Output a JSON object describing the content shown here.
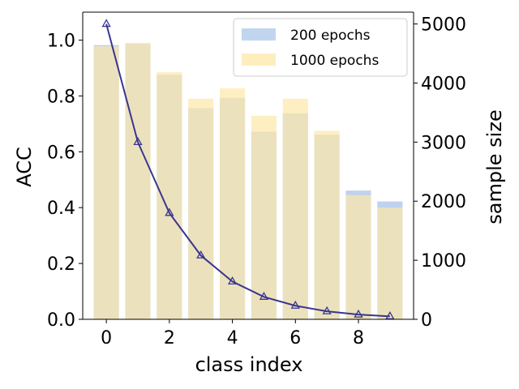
{
  "chart_data": {
    "type": "bar",
    "xlabel": "class index",
    "ylabel": "ACC",
    "y2label": "sample size",
    "x": [
      0,
      1,
      2,
      3,
      4,
      5,
      6,
      7,
      8,
      9
    ],
    "xticks": [
      "0",
      "2",
      "4",
      "6",
      "8"
    ],
    "xtick_values": [
      0,
      2,
      4,
      6,
      8
    ],
    "xlim": [
      -0.75,
      9.75
    ],
    "ylim": [
      0,
      1.1
    ],
    "yticks": [
      "0.0",
      "0.2",
      "0.4",
      "0.6",
      "0.8",
      "1.0"
    ],
    "ytick_values": [
      0,
      0.2,
      0.4,
      0.6,
      0.8,
      1.0
    ],
    "y2lim": [
      0,
      5200
    ],
    "y2ticks": [
      "0",
      "1000",
      "2000",
      "3000",
      "4000",
      "5000"
    ],
    "y2tick_values": [
      0,
      1000,
      2000,
      3000,
      4000,
      5000
    ],
    "series": [
      {
        "name": "200 epochs",
        "type": "bar",
        "axis": "left",
        "color": "#aec7e8",
        "values": [
          0.982,
          0.988,
          0.876,
          0.756,
          0.793,
          0.672,
          0.738,
          0.661,
          0.461,
          0.422
        ]
      },
      {
        "name": "1000 epochs",
        "type": "bar",
        "axis": "left",
        "color": "#fde8a8",
        "values": [
          0.978,
          0.99,
          0.885,
          0.79,
          0.827,
          0.729,
          0.79,
          0.675,
          0.445,
          0.4
        ]
      },
      {
        "type": "line",
        "axis": "right",
        "color": "#3a3590",
        "marker": "triangle",
        "values": [
          5000,
          3000,
          1800,
          1080,
          640,
          380,
          230,
          135,
          80,
          50
        ]
      }
    ],
    "legend_position": "top-right",
    "grid": false
  }
}
